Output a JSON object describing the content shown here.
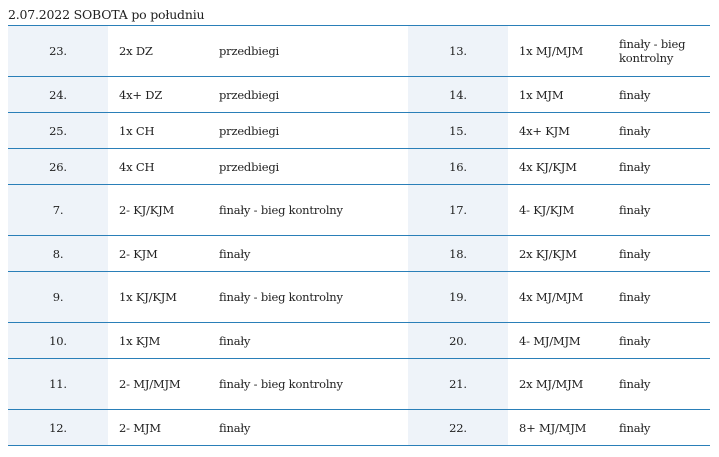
{
  "heading": "2.07.2022 SOBOTA po południu",
  "rows": [
    {
      "left": {
        "no": "23.",
        "boat": "2x DZ",
        "stage": "przedbiegi"
      },
      "right": {
        "no": "13.",
        "boat": "1x MJ/MJM",
        "stage": "finały - bieg kontrolny"
      }
    },
    {
      "left": {
        "no": "24.",
        "boat": "4x+ DZ",
        "stage": "przedbiegi"
      },
      "right": {
        "no": "14.",
        "boat": "1x MJM",
        "stage": "finały"
      }
    },
    {
      "left": {
        "no": "25.",
        "boat": "1x CH",
        "stage": "przedbiegi"
      },
      "right": {
        "no": "15.",
        "boat": "4x+ KJM",
        "stage": "finały"
      }
    },
    {
      "left": {
        "no": "26.",
        "boat": "4x CH",
        "stage": "przedbiegi"
      },
      "right": {
        "no": "16.",
        "boat": "4x KJ/KJM",
        "stage": "finały"
      }
    },
    {
      "left": {
        "no": "7.",
        "boat": "2- KJ/KJM",
        "stage": "finały - bieg kontrolny"
      },
      "right": {
        "no": "17.",
        "boat": "4- KJ/KJM",
        "stage": "finały"
      }
    },
    {
      "left": {
        "no": "8.",
        "boat": "2- KJM",
        "stage": "finały"
      },
      "right": {
        "no": "18.",
        "boat": "2x KJ/KJM",
        "stage": "finały"
      }
    },
    {
      "left": {
        "no": "9.",
        "boat": "1x KJ/KJM",
        "stage": "finały - bieg kontrolny"
      },
      "right": {
        "no": "19.",
        "boat": "4x MJ/MJM",
        "stage": "finały"
      }
    },
    {
      "left": {
        "no": "10.",
        "boat": "1x KJM",
        "stage": "finały"
      },
      "right": {
        "no": "20.",
        "boat": "4- MJ/MJM",
        "stage": "finały"
      }
    },
    {
      "left": {
        "no": "11.",
        "boat": "2- MJ/MJM",
        "stage": "finały - bieg kontrolny"
      },
      "right": {
        "no": "21.",
        "boat": "2x MJ/MJM",
        "stage": "finały"
      }
    },
    {
      "left": {
        "no": "12.",
        "boat": "2- MJM",
        "stage": "finały"
      },
      "right": {
        "no": "22.",
        "boat": "8+ MJ/MJM",
        "stage": "finały"
      }
    }
  ],
  "colors": {
    "border": "#2a7fb8",
    "shade": "#eef3f9"
  }
}
